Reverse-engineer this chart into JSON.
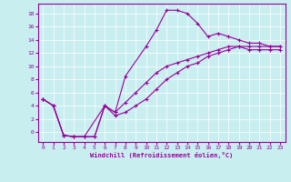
{
  "xlabel": "Windchill (Refroidissement éolien,°C)",
  "bg_color": "#c8eef0",
  "line_color": "#990099",
  "grid_color": "#ffffff",
  "x_ticks": [
    0,
    1,
    2,
    3,
    4,
    5,
    6,
    7,
    8,
    9,
    10,
    11,
    12,
    13,
    14,
    15,
    16,
    17,
    18,
    19,
    20,
    21,
    22,
    23
  ],
  "y_ticks": [
    0,
    2,
    4,
    6,
    8,
    10,
    12,
    14,
    16,
    18
  ],
  "ylim": [
    -1.5,
    19.5
  ],
  "xlim": [
    -0.5,
    23.5
  ],
  "curve1_x": [
    0,
    1,
    2,
    3,
    4,
    6,
    7,
    8,
    10,
    11,
    12,
    13,
    14,
    15,
    16,
    17,
    18,
    19,
    20,
    21,
    22,
    23
  ],
  "curve1_y": [
    5,
    4,
    -0.5,
    -0.7,
    -0.7,
    4,
    3,
    8.5,
    13,
    15.5,
    18.5,
    18.5,
    18,
    16.5,
    14.5,
    15,
    14.5,
    14,
    13.5,
    13.5,
    13,
    13
  ],
  "curve2_x": [
    0,
    1,
    2,
    3,
    4,
    5,
    6,
    7,
    8,
    9,
    10,
    11,
    12,
    13,
    14,
    15,
    16,
    17,
    18,
    19,
    20,
    21,
    22,
    23
  ],
  "curve2_y": [
    5,
    4,
    -0.5,
    -0.7,
    -0.7,
    -0.7,
    4,
    3,
    4.5,
    6,
    7.5,
    9,
    10,
    10.5,
    11,
    11.5,
    12,
    12.5,
    13,
    13,
    13,
    13,
    13,
    13
  ],
  "curve3_x": [
    0,
    1,
    2,
    3,
    4,
    5,
    6,
    7,
    8,
    9,
    10,
    11,
    12,
    13,
    14,
    15,
    16,
    17,
    18,
    19,
    20,
    21,
    22,
    23
  ],
  "curve3_y": [
    5,
    4,
    -0.5,
    -0.7,
    -0.7,
    -0.7,
    4,
    2.5,
    3,
    4,
    5,
    6.5,
    8,
    9,
    10,
    10.5,
    11.5,
    12,
    12.5,
    13,
    12.5,
    12.5,
    12.5,
    12.5
  ]
}
